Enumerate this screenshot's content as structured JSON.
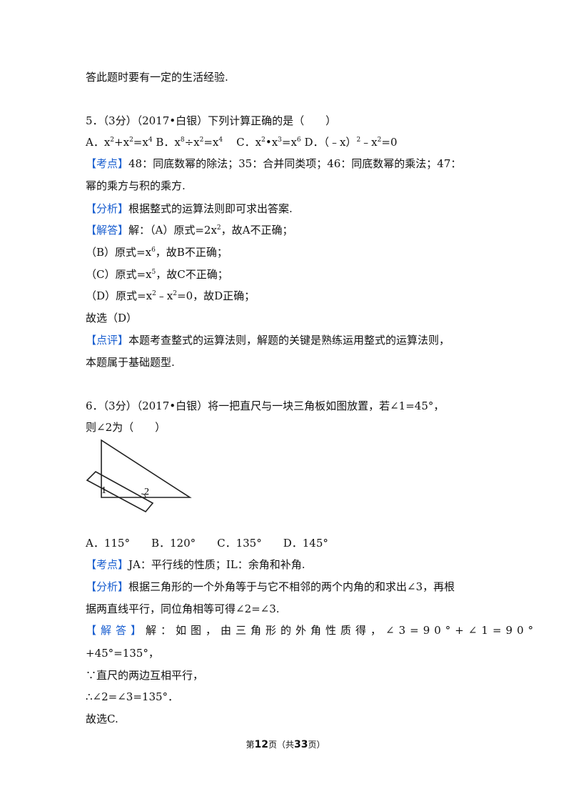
{
  "top": {
    "line1": "答此题时要有一定的生活经验."
  },
  "q5": {
    "stem": "5．（3分）（2017•白银）下列计算正确的是（　　）",
    "opt_a": "A．x",
    "opt_a2": "+x",
    "opt_a3": "=x",
    "sup_2": "2",
    "sup_4": "4",
    "opt_b": "B．x",
    "sup_8": "8",
    "opt_b2": "÷x",
    "opt_b3": "=x",
    "opt_c": "C．x",
    "opt_c2": "•x",
    "sup_3": "3",
    "opt_c3": "=x",
    "sup_6": "6",
    "opt_d": "D．（﹣x）",
    "opt_d2": "﹣x",
    "opt_d3": "=0",
    "kaodian_tag": "【考点】",
    "kaodian": "48：同底数幂的除法；35：合并同类项；46：同底数幂的乘法；47：",
    "kaodian2": "幂的乘方与积的乘方.",
    "fenxi_tag": "【分析】",
    "fenxi": "根据整式的运算法则即可求出答案.",
    "jieda_tag": "【解答】",
    "jieda_a": "解：（A）原式=2x",
    "jieda_a2": "，故A不正确；",
    "jieda_b": "（B）原式=x",
    "jieda_b2": "，故B不正确；",
    "sup_5": "5",
    "jieda_c": "（C）原式=x",
    "jieda_c2": "，故C不正确；",
    "jieda_d": "（D）原式=x",
    "jieda_d2": "﹣x",
    "jieda_d3": "=0，故D正确；",
    "guxuan": "故选（D）",
    "dianping_tag": "【点评】",
    "dianping": "本题考查整式的运算法则，解题的关键是熟练运用整式的运算法则，",
    "dianping2": "本题属于基础题型."
  },
  "q6": {
    "stem": "6．（3分）（2017•白银）将一把直尺与一块三角板如图放置，若∠1=45°，",
    "stem2": "则∠2为（　　）",
    "fig_label_1": "1",
    "fig_label_2": "2",
    "options": "A．115°　　B．120°　　C．135°　　D．145°",
    "kaodian_tag": "【考点】",
    "kaodian": "JA：平行线的性质；IL：余角和补角.",
    "fenxi_tag": "【分析】",
    "fenxi": "根据三角形的一个外角等于与它不相邻的两个内角的和求出∠3，再根",
    "fenxi2": "据两直线平行，同位角相等可得∠2=∠3.",
    "jieda_tag": "【解答】",
    "jieda": "解：如图，由三角形的外角性质得，∠3=90°+∠1=90°",
    "jieda2": "+45°=135°，",
    "jieda3": "∵直尺的两边互相平行，",
    "jieda4": "∴∠2=∠3=135°．",
    "guxuan": "故选C."
  },
  "footer": {
    "pre": "第",
    "page": "12",
    "mid": "页（共",
    "total": "33",
    "post": "页）"
  }
}
